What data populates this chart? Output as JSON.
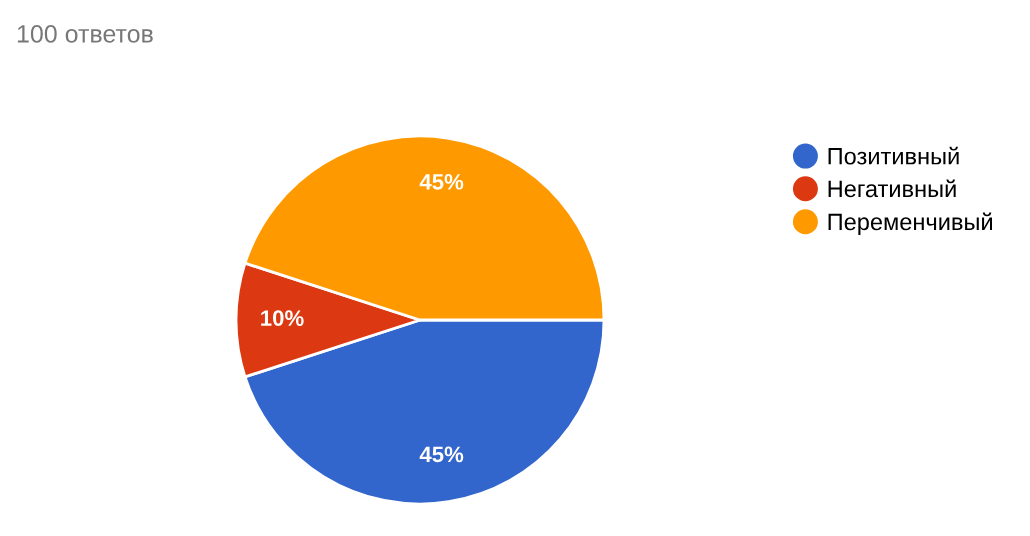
{
  "chart_data": {
    "type": "pie",
    "title": "100 ответов",
    "categories": [
      "Позитивный",
      "Негативный",
      "Переменчивый"
    ],
    "values": [
      45,
      10,
      45
    ],
    "colors": [
      "#3366cc",
      "#dc3912",
      "#ff9900"
    ],
    "value_labels": [
      "45%",
      "10%",
      "45%"
    ],
    "legend": "right"
  }
}
